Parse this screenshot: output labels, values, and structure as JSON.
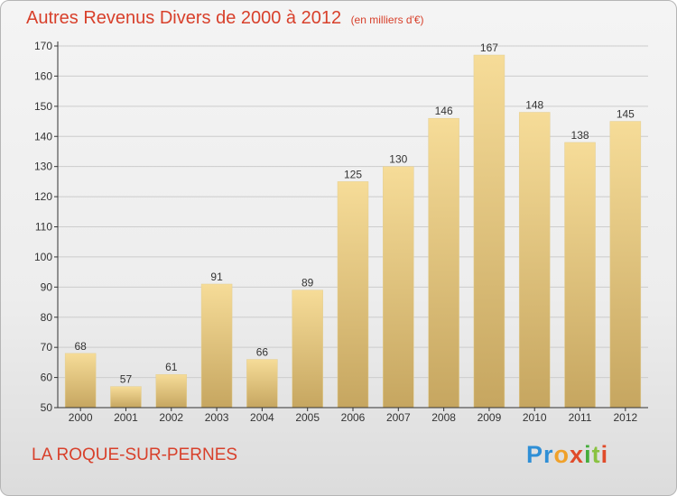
{
  "header": {
    "title": "Autres Revenus Divers de 2000 à 2012",
    "unit": "(en milliers d'€)"
  },
  "footer": {
    "commune": "LA ROQUE-SUR-PERNES",
    "logo_letters": [
      "P",
      "r",
      "o",
      "x",
      "i",
      "t",
      "i"
    ]
  },
  "colors": {
    "title": "#d8402b",
    "bar_top": "#f6dc98",
    "bar_bottom": "#c6a660",
    "grid": "#cccccc",
    "axis": "#333333"
  },
  "chart_data": {
    "type": "bar",
    "title": "Autres Revenus Divers de 2000 à 2012",
    "subtitle": "(en milliers d'€)",
    "xlabel": "",
    "ylabel": "",
    "ylim": [
      50,
      170
    ],
    "yticks": [
      50,
      60,
      70,
      80,
      90,
      100,
      110,
      120,
      130,
      140,
      150,
      160,
      170
    ],
    "grid": true,
    "categories": [
      "2000",
      "2001",
      "2002",
      "2003",
      "2004",
      "2005",
      "2006",
      "2007",
      "2008",
      "2009",
      "2010",
      "2011",
      "2012"
    ],
    "values": [
      68,
      57,
      61,
      91,
      66,
      89,
      125,
      130,
      146,
      167,
      148,
      138,
      145
    ]
  }
}
